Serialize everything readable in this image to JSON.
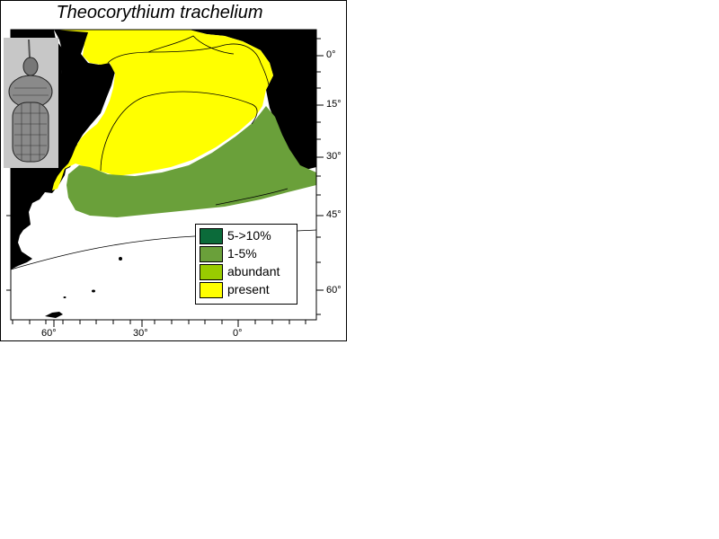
{
  "title": "Theocorythium trachelium",
  "latitude_labels": [
    "0°",
    "15°",
    "30°",
    "45°",
    "60°"
  ],
  "longitude_labels": [
    "60°",
    "30°",
    "0°"
  ],
  "legend": {
    "items": [
      {
        "label": "5->10%",
        "color": "#0b6b3a"
      },
      {
        "label": "1-5%",
        "color": "#6aa03a"
      },
      {
        "label": "abundant",
        "color": "#99cc00"
      },
      {
        "label": "present",
        "color": "#ffff00"
      }
    ]
  },
  "colors": {
    "land": "#000000",
    "ocean": "#ffffff",
    "present": "#ffff00",
    "one_to_five": "#6aa03a",
    "specimen_bg": "#c7c7c7"
  },
  "image": {
    "subject": "radiolarian-specimen-photo"
  }
}
